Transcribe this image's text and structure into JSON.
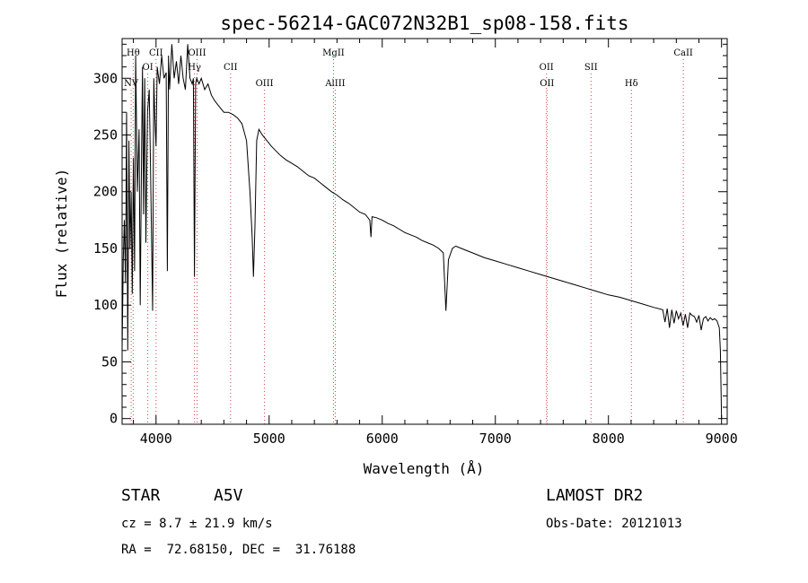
{
  "chart_data": {
    "type": "line",
    "title": "spec-56214-GAC072N32B1_sp08-158.fits",
    "xlabel": "Wavelength (Å)",
    "ylabel": "Flux (relative)",
    "xlim": [
      3700,
      9050
    ],
    "ylim": [
      -5,
      335
    ],
    "x_ticks": [
      4000,
      5000,
      6000,
      7000,
      8000,
      9000
    ],
    "y_ticks": [
      0,
      50,
      100,
      150,
      200,
      250,
      300
    ],
    "grid": false,
    "series": [
      {
        "x": [
          3700,
          3710,
          3720,
          3730,
          3740,
          3750,
          3760,
          3770,
          3780,
          3790,
          3800,
          3810,
          3820,
          3835,
          3850,
          3860,
          3870,
          3880,
          3890,
          3900,
          3910,
          3925,
          3940,
          3950,
          3960,
          3970,
          3980,
          3990,
          4000,
          4010,
          4030,
          4050,
          4070,
          4090,
          4100,
          4110,
          4120,
          4140,
          4160,
          4180,
          4200,
          4220,
          4240,
          4260,
          4280,
          4300,
          4320,
          4330,
          4340,
          4350,
          4360,
          4380,
          4400,
          4430,
          4460,
          4490,
          4520,
          4560,
          4600,
          4640,
          4680,
          4720,
          4760,
          4800,
          4830,
          4850,
          4861,
          4875,
          4890,
          4910,
          4940,
          4980,
          5020,
          5060,
          5100,
          5150,
          5200,
          5250,
          5300,
          5350,
          5400,
          5450,
          5500,
          5550,
          5600,
          5650,
          5700,
          5750,
          5800,
          5850,
          5890,
          5900,
          5910,
          5950,
          6000,
          6050,
          6100,
          6150,
          6200,
          6250,
          6300,
          6350,
          6400,
          6450,
          6500,
          6540,
          6563,
          6585,
          6620,
          6650,
          6700,
          6800,
          6900,
          7000,
          7100,
          7200,
          7300,
          7400,
          7500,
          7600,
          7700,
          7800,
          7900,
          8000,
          8100,
          8200,
          8300,
          8400,
          8480,
          8500,
          8520,
          8540,
          8560,
          8580,
          8600,
          8620,
          8640,
          8660,
          8680,
          8700,
          8720,
          8740,
          8760,
          8780,
          8800,
          8820,
          8840,
          8860,
          8880,
          8900,
          8920,
          8940,
          8960,
          8980,
          8990,
          9000
        ],
        "y": [
          60,
          140,
          175,
          120,
          270,
          60,
          245,
          150,
          200,
          110,
          230,
          130,
          320,
          200,
          255,
          100,
          210,
          310,
          180,
          300,
          155,
          270,
          290,
          230,
          160,
          95,
          300,
          265,
          240,
          310,
          295,
          320,
          300,
          305,
          130,
          320,
          290,
          330,
          300,
          315,
          295,
          320,
          300,
          290,
          330,
          300,
          295,
          300,
          125,
          295,
          300,
          295,
          300,
          290,
          295,
          285,
          280,
          275,
          270,
          270,
          268,
          265,
          260,
          245,
          200,
          160,
          125,
          170,
          245,
          255,
          250,
          245,
          240,
          236,
          232,
          228,
          225,
          222,
          218,
          214,
          212,
          208,
          204,
          200,
          197,
          193,
          190,
          186,
          182,
          180,
          175,
          160,
          178,
          177,
          175,
          172,
          170,
          167,
          164,
          162,
          160,
          157,
          155,
          153,
          150,
          146,
          95,
          140,
          150,
          152,
          150,
          146,
          142,
          139,
          136,
          133,
          130,
          127,
          124,
          121,
          118,
          115,
          112,
          109,
          107,
          104,
          101,
          98,
          96,
          85,
          97,
          80,
          96,
          84,
          95,
          88,
          93,
          82,
          92,
          80,
          93,
          91,
          90,
          85,
          91,
          78,
          88,
          90,
          86,
          89,
          87,
          88,
          86,
          80,
          60,
          0
        ]
      }
    ],
    "line_markers": [
      {
        "label": "Hθ",
        "x": 3798,
        "row": 1
      },
      {
        "label": "NV",
        "x": 3780,
        "row": 3
      },
      {
        "label": "OI",
        "x": 3927,
        "row": 2
      },
      {
        "label": "CII",
        "x": 4000,
        "row": 1
      },
      {
        "label": "OIII",
        "x": 4363,
        "row": 1
      },
      {
        "label": "Hγ",
        "x": 4340,
        "row": 2
      },
      {
        "label": "CII",
        "x": 4659,
        "row": 2
      },
      {
        "label": "OIII",
        "x": 4959,
        "row": 3
      },
      {
        "label": "MgII",
        "x": 5569,
        "row": 1
      },
      {
        "label": "AlIII",
        "x": 5585,
        "row": 3
      },
      {
        "label": "OII",
        "x": 7452,
        "row": 2
      },
      {
        "label": "OII",
        "x": 7457,
        "row": 3
      },
      {
        "label": "SII",
        "x": 7846,
        "row": 2
      },
      {
        "label": "Hδ",
        "x": 8203,
        "row": 3
      },
      {
        "label": "CaII",
        "x": 8662,
        "row": 1
      }
    ]
  },
  "info": {
    "object_type": "STAR",
    "subclass": "A5V",
    "survey": "LAMOST DR2",
    "redshift": "cz = 8.7 ± 21.9 km/s",
    "obs_date": "Obs-Date: 20121013",
    "coords": "RA =  72.68150, DEC =  31.76188"
  },
  "colors": {
    "line": "#000000",
    "marker": "#d04040"
  }
}
